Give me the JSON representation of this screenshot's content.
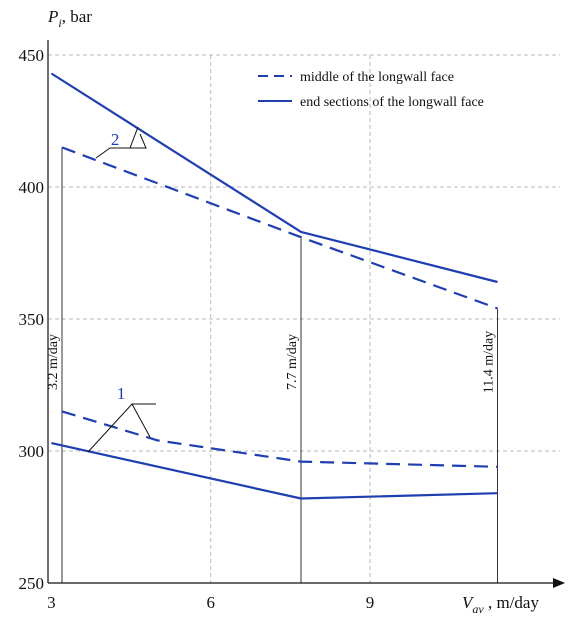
{
  "chart_data": {
    "type": "line",
    "ylabel_main": "P",
    "ylabel_sub": "i",
    "ylabel_unit": ", bar",
    "xlabel_main": "V",
    "xlabel_sub": "av",
    "xlabel_unit": " , m/day",
    "xlim": [
      3,
      12.3
    ],
    "ylim": [
      250,
      450
    ],
    "x_ticks": [
      3,
      6,
      9
    ],
    "y_ticks": [
      250,
      300,
      350,
      400,
      450
    ],
    "grid": true,
    "legend_position": "top-right",
    "series_color": "#1f3eb0",
    "series": [
      {
        "name": "middle of the longwall face",
        "style": "dashed",
        "group": "2",
        "x": [
          3.2,
          7.7,
          11.4
        ],
        "y": [
          415,
          381,
          354
        ]
      },
      {
        "name": "end sections of the longwall face",
        "style": "solid",
        "group": "2",
        "x": [
          3.0,
          7.7,
          11.4
        ],
        "y": [
          443,
          383,
          364
        ]
      },
      {
        "name": "middle of the longwall face",
        "style": "dashed",
        "group": "1",
        "x": [
          3.2,
          5.0,
          7.7,
          11.4
        ],
        "y": [
          315,
          304,
          296,
          294
        ]
      },
      {
        "name": "end sections of the longwall face",
        "style": "solid",
        "group": "1",
        "x": [
          3.0,
          7.7,
          11.4
        ],
        "y": [
          303,
          282,
          284
        ]
      }
    ],
    "curve_labels": [
      {
        "text": "2",
        "x": 4.35,
        "y": 418
      },
      {
        "text": "1",
        "x": 4.35,
        "y": 312
      }
    ],
    "annotations": [
      {
        "text": "3.2 m/day",
        "x": 3.2
      },
      {
        "text": "7.7 m/day",
        "x": 7.7
      },
      {
        "text": "11.4 m/day",
        "x": 11.4
      }
    ]
  }
}
